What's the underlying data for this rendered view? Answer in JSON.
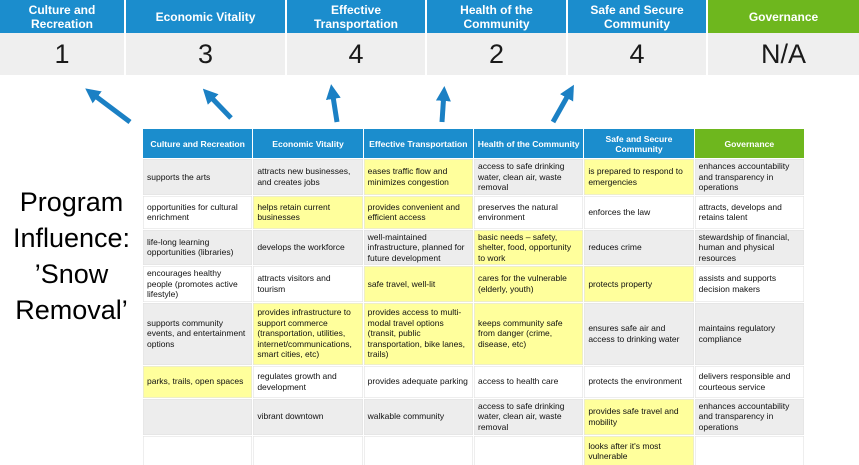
{
  "colors": {
    "blue": "#1b8dcd",
    "green": "#6eb71e",
    "yellow": "#ffff9c",
    "grayrow": "#ededed",
    "scorebg": "#efefef",
    "arrow": "#1b80c4",
    "text": "#111111"
  },
  "banner": {
    "columns": [
      {
        "label": "Culture and Recreation",
        "score": "1",
        "theme": "blue"
      },
      {
        "label": "Economic Vitality",
        "score": "3",
        "theme": "blue"
      },
      {
        "label": "Effective Transportation",
        "score": "4",
        "theme": "blue"
      },
      {
        "label": "Health of the Community",
        "score": "2",
        "theme": "blue"
      },
      {
        "label": "Safe and Secure Community",
        "score": "4",
        "theme": "blue"
      },
      {
        "label": "Governance",
        "score": "N/A",
        "theme": "green"
      }
    ]
  },
  "program_label": {
    "lines": [
      "Program",
      "Influence:",
      "’Snow",
      "Removal’"
    ],
    "text": "Program Influence: ’Snow Removal’"
  },
  "matrix": {
    "headers": [
      {
        "label": "Culture and Recreation",
        "theme": "blue"
      },
      {
        "label": "Economic Vitality",
        "theme": "blue"
      },
      {
        "label": "Effective Transportation",
        "theme": "blue"
      },
      {
        "label": "Health of the Community",
        "theme": "blue"
      },
      {
        "label": "Safe and Secure Community",
        "theme": "blue"
      },
      {
        "label": "Governance",
        "theme": "green"
      }
    ],
    "rows": [
      [
        {
          "text": "supports the arts",
          "highlight": false
        },
        {
          "text": "attracts new businesses, and creates jobs",
          "highlight": false
        },
        {
          "text": "eases traffic flow and minimizes congestion",
          "highlight": true
        },
        {
          "text": "access to safe drinking water, clean air, waste removal",
          "highlight": false
        },
        {
          "text": "is prepared to respond to emergencies",
          "highlight": true
        },
        {
          "text": "enhances accountability and transparency in operations",
          "highlight": false
        }
      ],
      [
        {
          "text": "opportunities for cultural enrichment",
          "highlight": false
        },
        {
          "text": "helps retain current businesses",
          "highlight": true
        },
        {
          "text": "provides convenient and efficient access",
          "highlight": true
        },
        {
          "text": "preserves the natural environment",
          "highlight": false
        },
        {
          "text": "enforces the law",
          "highlight": false
        },
        {
          "text": "attracts, develops and retains talent",
          "highlight": false
        }
      ],
      [
        {
          "text": "life-long learning opportunities (libraries)",
          "highlight": false
        },
        {
          "text": "develops the workforce",
          "highlight": false
        },
        {
          "text": "well-maintained infrastructure, planned for future development",
          "highlight": false
        },
        {
          "text": "basic needs – safety, shelter, food, opportunity to work",
          "highlight": true
        },
        {
          "text": "reduces crime",
          "highlight": false
        },
        {
          "text": "stewardship of financial, human and physical resources",
          "highlight": false
        }
      ],
      [
        {
          "text": "encourages healthy people (promotes active lifestyle)",
          "highlight": false
        },
        {
          "text": "attracts visitors and tourism",
          "highlight": false
        },
        {
          "text": "safe travel, well-lit",
          "highlight": true
        },
        {
          "text": "cares for the vulnerable (elderly, youth)",
          "highlight": true
        },
        {
          "text": "protects property",
          "highlight": true
        },
        {
          "text": "assists and supports decision makers",
          "highlight": false
        }
      ],
      [
        {
          "text": "supports community events, and entertainment options",
          "highlight": false
        },
        {
          "text": "provides infrastructure to support commerce (transportation, utilities, internet/communications, smart cities, etc)",
          "highlight": true
        },
        {
          "text": "provides access to multi-modal travel options (transit, public transportation, bike lanes, trails)",
          "highlight": true
        },
        {
          "text": "keeps community safe from danger (crime, disease, etc)",
          "highlight": true
        },
        {
          "text": "ensures safe air and access to drinking water",
          "highlight": false
        },
        {
          "text": "maintains regulatory compliance",
          "highlight": false
        }
      ],
      [
        {
          "text": "parks, trails, open spaces",
          "highlight": true
        },
        {
          "text": "regulates growth and development",
          "highlight": false
        },
        {
          "text": "provides adequate parking",
          "highlight": false
        },
        {
          "text": "access to health care",
          "highlight": false
        },
        {
          "text": "protects the environment",
          "highlight": false
        },
        {
          "text": "delivers responsible and courteous service",
          "highlight": false
        }
      ],
      [
        {
          "text": "",
          "highlight": false
        },
        {
          "text": "vibrant downtown",
          "highlight": false
        },
        {
          "text": "walkable community",
          "highlight": false
        },
        {
          "text": "access to safe drinking water, clean air, waste removal",
          "highlight": false
        },
        {
          "text": "provides safe travel and mobility",
          "highlight": true
        },
        {
          "text": "enhances accountability and transparency in operations",
          "highlight": false
        }
      ],
      [
        {
          "text": "",
          "highlight": false
        },
        {
          "text": "",
          "highlight": false
        },
        {
          "text": "",
          "highlight": false
        },
        {
          "text": "",
          "highlight": false
        },
        {
          "text": "looks after it's most vulnerable",
          "highlight": true
        },
        {
          "text": "",
          "highlight": false
        }
      ]
    ]
  }
}
